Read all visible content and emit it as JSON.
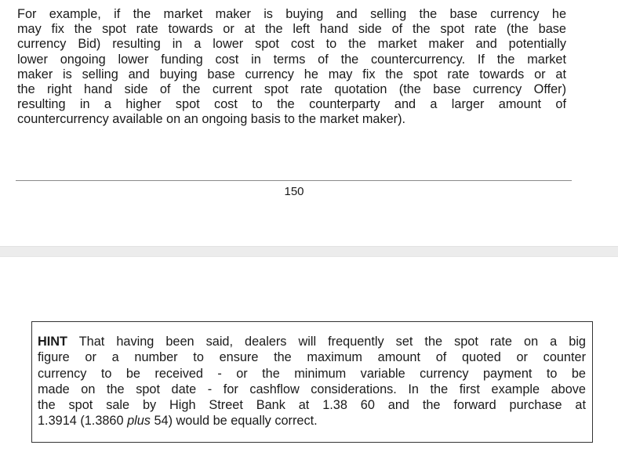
{
  "paragraph": {
    "lines": [
      "For example, if the market maker is buying and selling the base currency he",
      "may fix the spot rate towards or at the left hand side of the spot rate (the base",
      "currency Bid) resulting in a lower spot cost to the market maker and potentially",
      "lower ongoing lower funding cost in terms of the countercurrency. If the market",
      "maker is selling and buying base currency he may fix the spot rate towards or at",
      "the right hand side of the current spot rate quotation (the base currency Offer)",
      "resulting in a higher spot cost to the counterparty and a larger amount of",
      "countercurrency available on an ongoing basis to the market maker)."
    ]
  },
  "page_number": "150",
  "hint": {
    "label": "HINT",
    "line1_rest": " That having been said, dealers will frequently set the spot rate on a big",
    "lines": [
      "figure or a number to ensure the maximum amount of quoted or counter",
      "currency to be received - or the minimum variable currency payment to be",
      "made on the spot date - for cashflow considerations. In the first example above",
      "the spot sale by High Street Bank at 1.38 60 and the forward purchase at"
    ],
    "last_line_before": "1.3914 (1.3860 ",
    "last_line_italic": "plus",
    "last_line_after": " 54) would be equally correct."
  }
}
